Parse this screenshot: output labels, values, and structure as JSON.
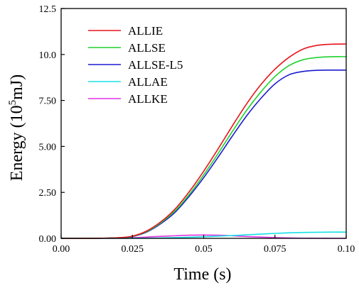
{
  "chart_data": {
    "type": "line",
    "title": "",
    "xlabel": "Time (s)",
    "ylabel_main": "Energy (10",
    "ylabel_sup": "5",
    "ylabel_unit": "mJ)",
    "xlim": [
      0,
      0.1
    ],
    "ylim": [
      0,
      12.5
    ],
    "x_ticks": [
      {
        "value": 0,
        "label": "0.00"
      },
      {
        "value": 0.025,
        "label": "0.025"
      },
      {
        "value": 0.05,
        "label": "0.05"
      },
      {
        "value": 0.075,
        "label": "0.075"
      },
      {
        "value": 0.1,
        "label": "0.10"
      }
    ],
    "y_ticks": [
      {
        "value": 0,
        "label": "0.00"
      },
      {
        "value": 2.5,
        "label": "2.50"
      },
      {
        "value": 5.0,
        "label": "5.00"
      },
      {
        "value": 7.5,
        "label": "7.50"
      },
      {
        "value": 10.0,
        "label": "10.0"
      },
      {
        "value": 12.5,
        "label": "12.5"
      }
    ],
    "grid": false,
    "legend_position": "top-left",
    "x": [
      0,
      0.005,
      0.01,
      0.015,
      0.02,
      0.025,
      0.03,
      0.035,
      0.04,
      0.045,
      0.05,
      0.055,
      0.06,
      0.065,
      0.07,
      0.075,
      0.08,
      0.085,
      0.09,
      0.095,
      0.1
    ],
    "series": [
      {
        "name": "ALLIE",
        "color": "#e8141b",
        "values": [
          0,
          0,
          0,
          0.01,
          0.03,
          0.12,
          0.4,
          0.9,
          1.6,
          2.55,
          3.65,
          4.85,
          6.1,
          7.3,
          8.35,
          9.2,
          9.85,
          10.3,
          10.5,
          10.56,
          10.57
        ]
      },
      {
        "name": "ALLSE",
        "color": "#1fd12d",
        "values": [
          0,
          0,
          0,
          0.01,
          0.03,
          0.11,
          0.37,
          0.85,
          1.5,
          2.4,
          3.45,
          4.6,
          5.8,
          6.95,
          7.95,
          8.8,
          9.4,
          9.72,
          9.84,
          9.88,
          9.88
        ]
      },
      {
        "name": "ALLSE-L5",
        "color": "#1b1bd1",
        "values": [
          0,
          0,
          0,
          0.01,
          0.03,
          0.1,
          0.34,
          0.8,
          1.42,
          2.3,
          3.3,
          4.4,
          5.55,
          6.65,
          7.6,
          8.4,
          8.9,
          9.08,
          9.14,
          9.15,
          9.15
        ]
      },
      {
        "name": "ALLAE",
        "color": "#18e0e8",
        "values": [
          0,
          0,
          0,
          0,
          0,
          0.005,
          0.01,
          0.02,
          0.04,
          0.06,
          0.09,
          0.12,
          0.15,
          0.19,
          0.23,
          0.27,
          0.3,
          0.32,
          0.33,
          0.34,
          0.34
        ]
      },
      {
        "name": "ALLKE",
        "color": "#e034e0",
        "values": [
          0,
          0,
          0,
          0,
          0.01,
          0.03,
          0.07,
          0.11,
          0.14,
          0.17,
          0.18,
          0.17,
          0.14,
          0.1,
          0.07,
          0.04,
          0.02,
          0.01,
          0.005,
          0,
          0
        ]
      }
    ]
  }
}
